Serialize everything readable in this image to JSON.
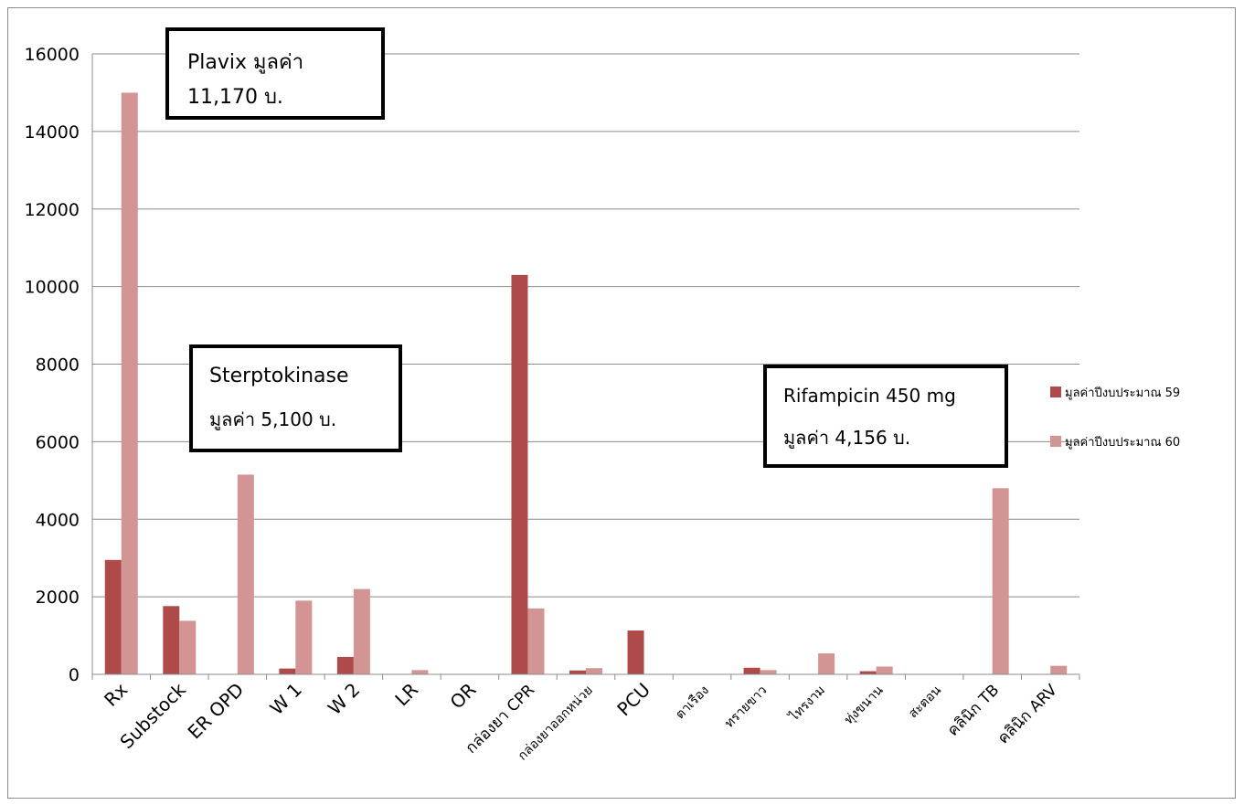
{
  "chart_data": {
    "type": "bar",
    "title": "",
    "xlabel": "",
    "ylabel": "",
    "ylim": [
      0,
      16000
    ],
    "yticks": [
      "0",
      "2000",
      "4000",
      "6000",
      "8000",
      "10000",
      "12000",
      "14000",
      "16000"
    ],
    "grid": true,
    "legend_position": "right",
    "categories": [
      "Rx",
      "Substock",
      "ER OPD",
      "W 1",
      "W 2",
      "LR",
      "OR",
      "กล่องยา CPR",
      "กล่องยาออกหน่วย",
      "PCU",
      "ตาเรือง",
      "ทรายขาว",
      "ไทรงาม",
      "ทุ่งขนาน",
      "สะตอน",
      "คลินิก TB",
      "คลินิก ARV"
    ],
    "series": [
      {
        "name": "มูลค่าปีงบประมาณ 59",
        "color": "#AE4B4A",
        "values": [
          2950,
          1760,
          0,
          150,
          450,
          0,
          0,
          10300,
          100,
          1130,
          0,
          170,
          0,
          80,
          0,
          0,
          0
        ]
      },
      {
        "name": "มูลค่าปีงบประมาณ 60",
        "color": "#D39594",
        "values": [
          15000,
          1380,
          5150,
          1900,
          2200,
          110,
          0,
          1700,
          160,
          0,
          0,
          110,
          540,
          200,
          0,
          4800,
          220
        ]
      }
    ],
    "annotations": [
      {
        "id": "plavix",
        "line1": "Plavix มูลค่า",
        "line2": "11,170 บ."
      },
      {
        "id": "streptokinase",
        "line1": "Sterptokinase",
        "line2": "มูลค่า 5,100 บ."
      },
      {
        "id": "rifampicin",
        "line1": "Rifampicin 450 mg",
        "line2": "มูลค่า 4,156 บ."
      }
    ]
  },
  "colors": {
    "gridline": "#8c8c8c",
    "axis": "#8c8c8c",
    "series59": "#AE4B4A",
    "series60": "#D39594"
  }
}
